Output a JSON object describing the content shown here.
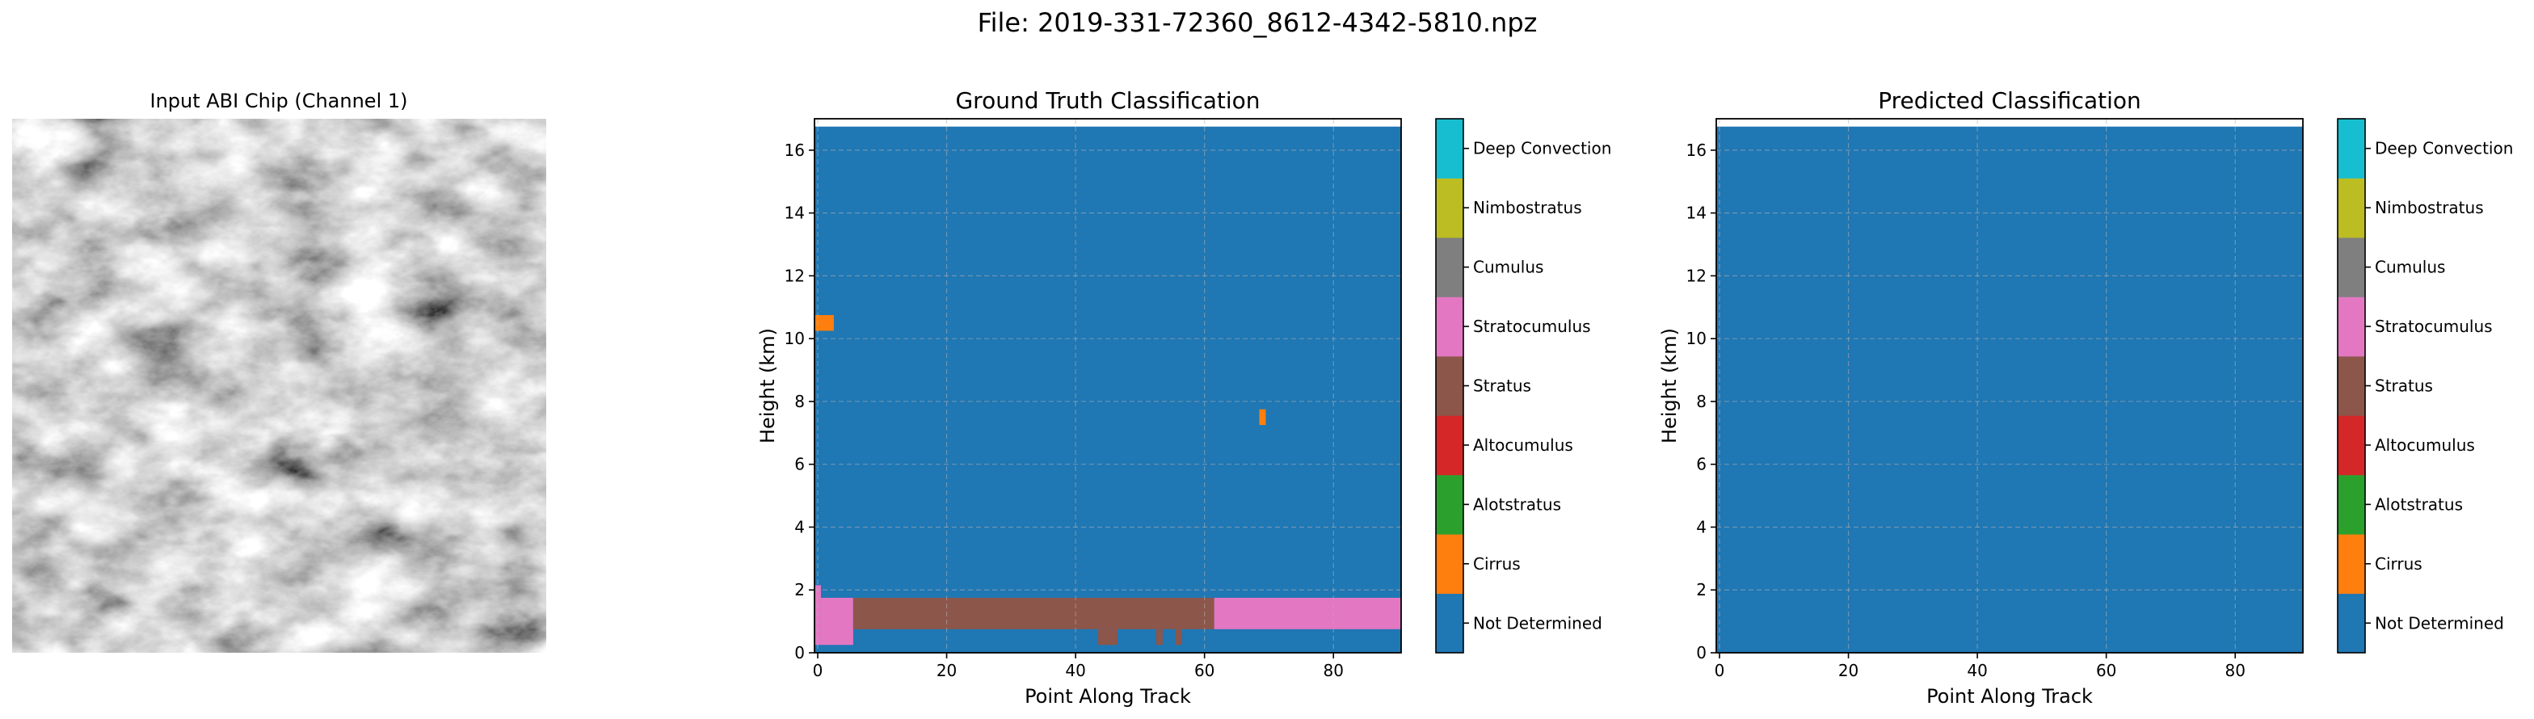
{
  "suptitle": "File: 2019-331-72360_8612-4342-5810.npz",
  "colors": {
    "Not Determined": "#1f77b4",
    "Cirrus": "#ff7f0e",
    "Alotstratus": "#2ca02c",
    "Altocumulus": "#d62728",
    "Stratus": "#8c564b",
    "Stratocumulus": "#e377c2",
    "Cumulus": "#7f7f7f",
    "Nimbostratus": "#bcbd22",
    "Deep Convection": "#17becf"
  },
  "colorbar_labels": [
    "Not Determined",
    "Cirrus",
    "Alotstratus",
    "Altocumulus",
    "Stratus",
    "Stratocumulus",
    "Cumulus",
    "Nimbostratus",
    "Deep Convection"
  ],
  "chart_data": [
    {
      "type": "image",
      "title": "Input ABI Chip (Channel 1)",
      "colormap": "gray"
    },
    {
      "type": "heatmap",
      "title": "Ground Truth Classification",
      "xlabel": "Point Along Track",
      "ylabel": "Height (km)",
      "xlim": [
        -0.5,
        90.5
      ],
      "ylim": [
        0,
        17
      ],
      "xticks": [
        0,
        20,
        40,
        60,
        80
      ],
      "yticks": [
        0,
        2,
        4,
        6,
        8,
        10,
        12,
        14,
        16
      ],
      "grid": true,
      "background_class": "Not Determined",
      "data_top_km": 16.75,
      "regions": [
        {
          "class": "Stratocumulus",
          "x": [
            -0.5,
            0.5
          ],
          "y": [
            0.25,
            2.15
          ]
        },
        {
          "class": "Stratocumulus",
          "x": [
            0.5,
            5.5
          ],
          "y": [
            0.25,
            1.75
          ]
        },
        {
          "class": "Stratus",
          "x": [
            5.5,
            61.5
          ],
          "y": [
            0.75,
            1.75
          ]
        },
        {
          "class": "Stratus",
          "x": [
            43.5,
            46.5
          ],
          "y": [
            0.25,
            0.75
          ]
        },
        {
          "class": "Stratus",
          "x": [
            52.5,
            53.5
          ],
          "y": [
            0.25,
            0.75
          ]
        },
        {
          "class": "Stratus",
          "x": [
            55.5,
            56.5
          ],
          "y": [
            0.25,
            0.75
          ]
        },
        {
          "class": "Stratocumulus",
          "x": [
            61.5,
            90.5
          ],
          "y": [
            0.75,
            1.75
          ]
        },
        {
          "class": "Cirrus",
          "x": [
            -0.5,
            2.5
          ],
          "y": [
            10.25,
            10.75
          ]
        },
        {
          "class": "Cirrus",
          "x": [
            68.5,
            69.5
          ],
          "y": [
            7.25,
            7.75
          ]
        }
      ]
    },
    {
      "type": "heatmap",
      "title": "Predicted Classification",
      "xlabel": "Point Along Track",
      "ylabel": "Height (km)",
      "xlim": [
        -0.5,
        90.5
      ],
      "ylim": [
        0,
        17
      ],
      "xticks": [
        0,
        20,
        40,
        60,
        80
      ],
      "yticks": [
        0,
        2,
        4,
        6,
        8,
        10,
        12,
        14,
        16
      ],
      "grid": true,
      "background_class": "Not Determined",
      "data_top_km": 16.75,
      "regions": []
    }
  ]
}
